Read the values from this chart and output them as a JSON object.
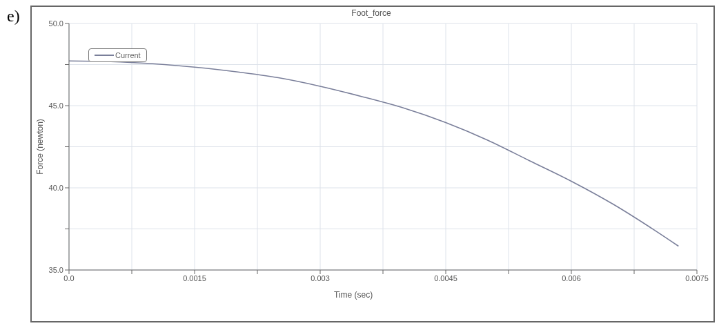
{
  "chart_data": {
    "type": "line",
    "title": "Foot_force",
    "xlabel": "Time (sec)",
    "ylabel": "Force (newton)",
    "annotations": [
      "e)"
    ],
    "x": [
      0,
      0.0005,
      0.001,
      0.0015,
      0.002,
      0.0025,
      0.003,
      0.0035,
      0.004,
      0.0045,
      0.005,
      0.0055,
      0.006,
      0.0065,
      0.007,
      0.00728
    ],
    "series": [
      {
        "name": "Current",
        "color": "#7a7f9a",
        "values": [
          47.72,
          47.68,
          47.55,
          47.34,
          47.06,
          46.7,
          46.18,
          45.55,
          44.85,
          43.97,
          42.9,
          41.65,
          40.4,
          39.0,
          37.4,
          36.45
        ]
      }
    ],
    "xlim": [
      0,
      0.0075
    ],
    "xticks": [
      {
        "value": 0,
        "label": "0.0"
      },
      {
        "value": 0.00075,
        "label": null
      },
      0.0015,
      {
        "value": 0.00225,
        "label": null
      },
      0.003,
      {
        "value": 0.00375,
        "label": null
      },
      0.0045,
      {
        "value": 0.00525,
        "label": null
      },
      0.006,
      {
        "value": 0.00675,
        "label": null
      },
      0.0075
    ],
    "ylim": [
      35,
      50
    ],
    "yticks": [
      {
        "value": 35,
        "label": "35.0"
      },
      {
        "value": 37.5,
        "label": null
      },
      {
        "value": 40,
        "label": "40.0"
      },
      {
        "value": 42.5,
        "label": null
      },
      {
        "value": 45,
        "label": "45.0"
      },
      {
        "value": 47.5,
        "label": null
      },
      {
        "value": 50,
        "label": "50.0"
      }
    ],
    "grid": true,
    "legend": "top left",
    "marker": "none",
    "line_style": "solid"
  }
}
